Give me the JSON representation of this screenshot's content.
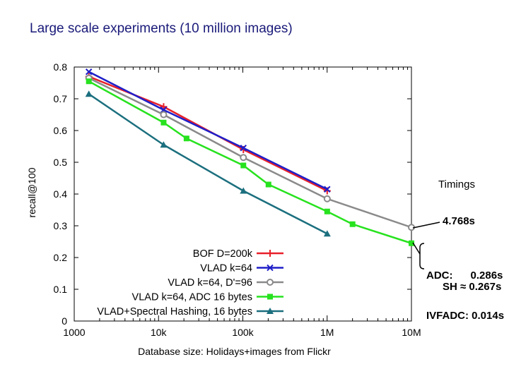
{
  "slide": {
    "title": "Large scale experiments (10 million images)"
  },
  "annotations": {
    "timings_label": "Timings",
    "bof_time": "4.768s",
    "adc_line": "ADC:      0.286s",
    "ivfadc_line": "IVFADC: 0.014s",
    "sh_line": "SH ≈ 0.267s"
  },
  "colors": {
    "bof": "#e8202a",
    "vlad64": "#1f1fc8",
    "vlad96": "#8a8a8a",
    "adc": "#27e21e",
    "sh": "#1b6f7e",
    "title": "#1a1a7a"
  },
  "chart_data": {
    "type": "line",
    "title": "",
    "xlabel": "Database size: Holidays+images from Flickr",
    "ylabel": "recall@100",
    "xscale": "log",
    "xlim": [
      1000,
      10000000
    ],
    "ylim": [
      0,
      0.8
    ],
    "xticks": [
      1000,
      10000,
      100000,
      1000000,
      10000000
    ],
    "xtick_labels": [
      "1000",
      "10k",
      "100k",
      "1M",
      "10M"
    ],
    "yticks": [
      0,
      0.1,
      0.2,
      0.3,
      0.4,
      0.5,
      0.6,
      0.7,
      0.8
    ],
    "ytick_labels": [
      "0",
      "0.1",
      "0.2",
      "0.3",
      "0.4",
      "0.5",
      "0.6",
      "0.7",
      "0.8"
    ],
    "grid": false,
    "legend_position": "bottom-center",
    "series": [
      {
        "name": "BOF D=200k",
        "color_key": "bof",
        "marker": "plus",
        "x": [
          1491,
          11491,
          101491,
          1001491
        ],
        "y": [
          0.77,
          0.675,
          0.54,
          0.41
        ]
      },
      {
        "name": "VLAD k=64",
        "color_key": "vlad64",
        "marker": "cross",
        "x": [
          1491,
          11491,
          101491,
          1001491
        ],
        "y": [
          0.785,
          0.665,
          0.545,
          0.415
        ]
      },
      {
        "name": "VLAD k=64, D'=96",
        "color_key": "vlad96",
        "marker": "circle",
        "x": [
          1491,
          11491,
          101491,
          1001491,
          10001491
        ],
        "y": [
          0.765,
          0.65,
          0.515,
          0.385,
          0.295
        ]
      },
      {
        "name": "VLAD k=64, ADC 16 bytes",
        "color_key": "adc",
        "marker": "square",
        "x": [
          1491,
          11491,
          21491,
          101491,
          201491,
          1001491,
          2001491,
          10001491
        ],
        "y": [
          0.755,
          0.625,
          0.575,
          0.49,
          0.43,
          0.345,
          0.305,
          0.245
        ]
      },
      {
        "name": "VLAD+Spectral Hashing, 16 bytes",
        "color_key": "sh",
        "marker": "triangle",
        "x": [
          1491,
          11491,
          101491,
          1001491
        ],
        "y": [
          0.715,
          0.555,
          0.41,
          0.275
        ]
      }
    ]
  }
}
